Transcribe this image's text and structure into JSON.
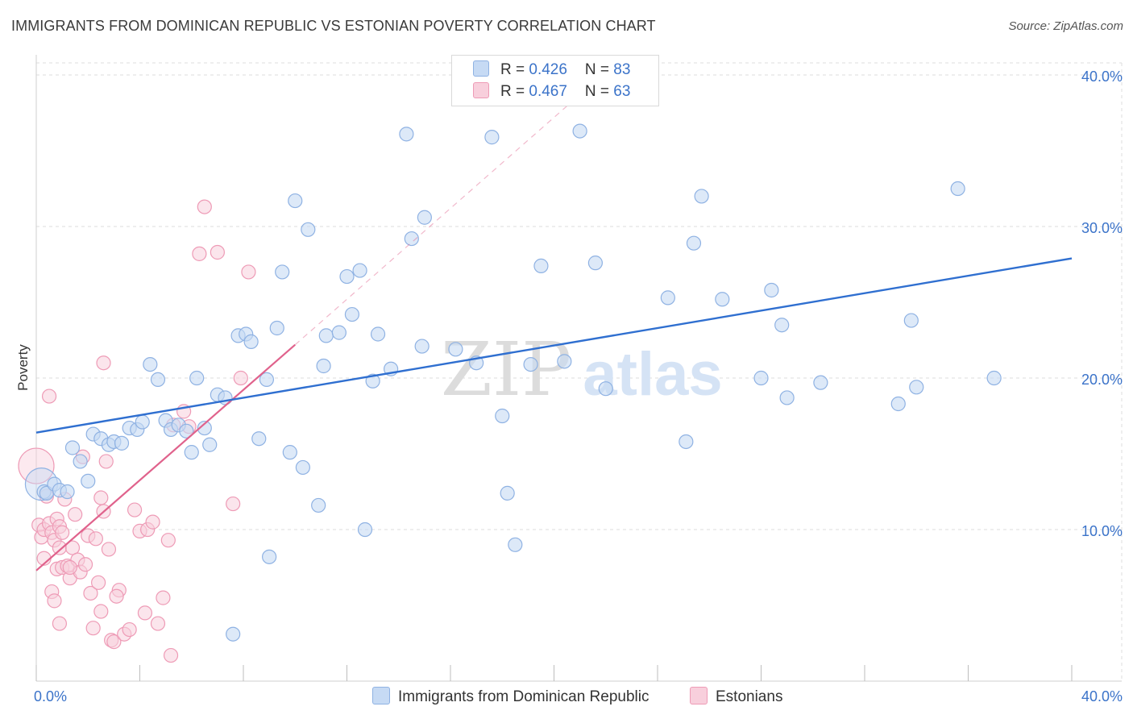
{
  "header": {
    "title": "IMMIGRANTS FROM DOMINICAN REPUBLIC VS ESTONIAN POVERTY CORRELATION CHART",
    "source": "Source: ZipAtlas.com"
  },
  "watermark": {
    "zip": "ZIP",
    "atlas": "atlas"
  },
  "legend": {
    "r_label": "R = ",
    "n_label": "N = ",
    "series": [
      {
        "r": "0.426",
        "n": "83",
        "color": "#a9c6ef"
      },
      {
        "r": "0.467",
        "n": "63",
        "color": "#f5b7ca"
      }
    ]
  },
  "bottom_legend": {
    "blue_label": "Immigrants from Dominican Republic",
    "pink_label": "Estonians"
  },
  "colors": {
    "blue_fill": "#c6daf4",
    "blue_stroke": "#8fb2e3",
    "blue_line": "#2f6fd0",
    "pink_fill": "#f8cfdc",
    "pink_stroke": "#ee9bb6",
    "pink_line": "#e0628c",
    "grid": "#dedede",
    "axis_text": "#3b73c9"
  },
  "chart_data": {
    "type": "scatter",
    "title": "IMMIGRANTS FROM DOMINICAN REPUBLIC VS ESTONIAN POVERTY CORRELATION CHART",
    "xlabel": "",
    "ylabel": "Poverty",
    "xlim": [
      0,
      40
    ],
    "ylim": [
      0,
      40.8
    ],
    "x_tick_labels": [
      "0.0%",
      "40.0%"
    ],
    "y_ticks": [
      10,
      20,
      30,
      40
    ],
    "y_tick_labels": [
      "10.0%",
      "20.0%",
      "30.0%",
      "40.0%"
    ],
    "series": [
      {
        "name": "Immigrants from Dominican Republic",
        "R": 0.426,
        "N": 83,
        "trend": {
          "x": [
            0,
            40
          ],
          "y": [
            16.4,
            27.9
          ],
          "dashed_extension": false
        },
        "points": [
          [
            0.3,
            12.5
          ],
          [
            0.4,
            12.4
          ],
          [
            0.7,
            13.0
          ],
          [
            0.9,
            12.6
          ],
          [
            1.2,
            12.5
          ],
          [
            1.4,
            15.4
          ],
          [
            1.7,
            14.5
          ],
          [
            2.0,
            13.2
          ],
          [
            2.2,
            16.3
          ],
          [
            2.5,
            16.0
          ],
          [
            2.8,
            15.6
          ],
          [
            3.0,
            15.8
          ],
          [
            3.3,
            15.7
          ],
          [
            3.6,
            16.7
          ],
          [
            3.9,
            16.6
          ],
          [
            4.1,
            17.1
          ],
          [
            4.4,
            20.9
          ],
          [
            4.7,
            19.9
          ],
          [
            5.0,
            17.2
          ],
          [
            5.2,
            16.6
          ],
          [
            5.5,
            16.9
          ],
          [
            5.8,
            16.5
          ],
          [
            6.0,
            15.1
          ],
          [
            6.2,
            20.0
          ],
          [
            6.5,
            16.7
          ],
          [
            6.7,
            15.6
          ],
          [
            7.0,
            18.9
          ],
          [
            7.3,
            18.7
          ],
          [
            7.6,
            3.1
          ],
          [
            7.8,
            22.8
          ],
          [
            8.1,
            22.9
          ],
          [
            8.3,
            22.4
          ],
          [
            8.6,
            16.0
          ],
          [
            8.9,
            19.9
          ],
          [
            9.0,
            8.2
          ],
          [
            9.3,
            23.3
          ],
          [
            9.5,
            27.0
          ],
          [
            9.8,
            15.1
          ],
          [
            10.0,
            31.7
          ],
          [
            10.3,
            14.1
          ],
          [
            10.5,
            29.8
          ],
          [
            10.9,
            11.6
          ],
          [
            11.1,
            20.8
          ],
          [
            11.2,
            22.8
          ],
          [
            11.7,
            23.0
          ],
          [
            12.0,
            26.7
          ],
          [
            12.2,
            24.2
          ],
          [
            12.5,
            27.1
          ],
          [
            12.7,
            10.0
          ],
          [
            13.0,
            19.8
          ],
          [
            13.2,
            22.9
          ],
          [
            13.7,
            20.6
          ],
          [
            14.3,
            36.1
          ],
          [
            14.5,
            29.2
          ],
          [
            14.9,
            22.1
          ],
          [
            15.0,
            30.6
          ],
          [
            16.2,
            21.9
          ],
          [
            17.0,
            21.0
          ],
          [
            17.6,
            35.9
          ],
          [
            18.0,
            17.5
          ],
          [
            18.2,
            12.4
          ],
          [
            18.5,
            9.0
          ],
          [
            19.1,
            20.9
          ],
          [
            19.5,
            27.4
          ],
          [
            20.4,
            21.1
          ],
          [
            21.0,
            36.3
          ],
          [
            21.6,
            27.6
          ],
          [
            22.0,
            19.3
          ],
          [
            24.4,
            25.3
          ],
          [
            25.1,
            15.8
          ],
          [
            25.4,
            28.9
          ],
          [
            25.7,
            32.0
          ],
          [
            26.5,
            25.2
          ],
          [
            28.0,
            20.0
          ],
          [
            28.4,
            25.8
          ],
          [
            28.8,
            23.5
          ],
          [
            29.0,
            18.7
          ],
          [
            30.3,
            19.7
          ],
          [
            33.3,
            18.3
          ],
          [
            33.8,
            23.8
          ],
          [
            34.0,
            19.4
          ],
          [
            35.6,
            32.5
          ],
          [
            37.0,
            20.0
          ]
        ]
      },
      {
        "name": "Estonians",
        "R": 0.467,
        "N": 63,
        "trend": {
          "x": [
            0,
            10
          ],
          "y": [
            7.3,
            22.2
          ],
          "dashed_extension": {
            "x": [
              10,
              21.2
            ],
            "y": [
              22.2,
              39.0
            ]
          }
        },
        "points": [
          [
            0.1,
            10.3
          ],
          [
            0.2,
            9.5
          ],
          [
            0.3,
            10.0
          ],
          [
            0.3,
            8.1
          ],
          [
            0.4,
            12.2
          ],
          [
            0.5,
            10.4
          ],
          [
            0.6,
            9.8
          ],
          [
            0.7,
            9.3
          ],
          [
            0.8,
            10.7
          ],
          [
            0.9,
            10.2
          ],
          [
            1.0,
            9.8
          ],
          [
            0.5,
            18.8
          ],
          [
            0.6,
            5.9
          ],
          [
            0.7,
            5.3
          ],
          [
            0.8,
            7.4
          ],
          [
            0.9,
            8.8
          ],
          [
            1.0,
            7.5
          ],
          [
            1.1,
            12.0
          ],
          [
            1.2,
            7.6
          ],
          [
            1.3,
            6.8
          ],
          [
            1.4,
            8.8
          ],
          [
            1.5,
            11.0
          ],
          [
            1.6,
            8.0
          ],
          [
            1.7,
            7.2
          ],
          [
            1.8,
            14.8
          ],
          [
            1.9,
            7.7
          ],
          [
            2.0,
            9.6
          ],
          [
            2.1,
            5.8
          ],
          [
            2.2,
            3.5
          ],
          [
            2.3,
            9.4
          ],
          [
            2.4,
            6.5
          ],
          [
            2.5,
            12.1
          ],
          [
            2.6,
            11.2
          ],
          [
            2.7,
            14.5
          ],
          [
            2.8,
            8.7
          ],
          [
            2.9,
            2.7
          ],
          [
            3.0,
            2.6
          ],
          [
            3.2,
            6.0
          ],
          [
            3.4,
            3.1
          ],
          [
            3.6,
            3.4
          ],
          [
            3.8,
            11.3
          ],
          [
            4.0,
            9.9
          ],
          [
            4.2,
            4.5
          ],
          [
            4.3,
            10.0
          ],
          [
            4.5,
            10.5
          ],
          [
            4.7,
            3.8
          ],
          [
            4.9,
            5.5
          ],
          [
            5.1,
            9.3
          ],
          [
            5.3,
            16.9
          ],
          [
            5.7,
            17.8
          ],
          [
            5.9,
            16.8
          ],
          [
            6.3,
            28.2
          ],
          [
            6.5,
            31.3
          ],
          [
            7.0,
            28.3
          ],
          [
            7.6,
            11.7
          ],
          [
            7.9,
            20.0
          ],
          [
            8.2,
            27.0
          ],
          [
            2.6,
            21.0
          ],
          [
            1.3,
            7.5
          ],
          [
            2.5,
            4.6
          ],
          [
            0.9,
            3.8
          ],
          [
            3.1,
            5.6
          ],
          [
            5.2,
            1.7
          ]
        ]
      }
    ]
  }
}
